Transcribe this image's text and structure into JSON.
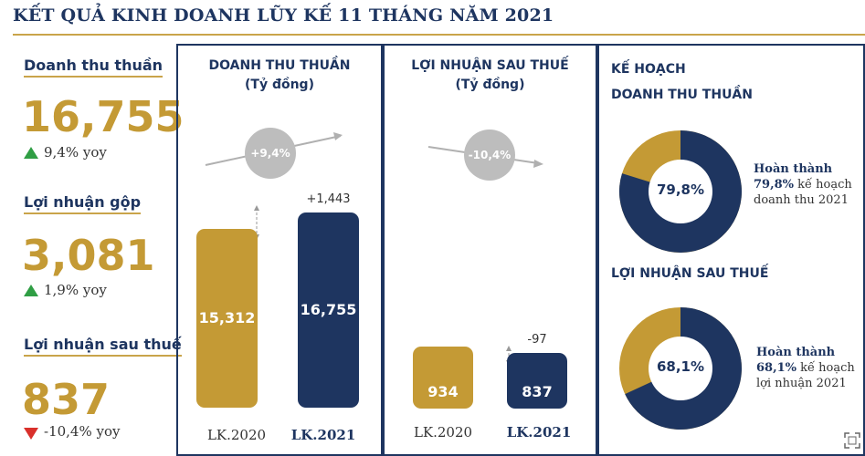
{
  "title": "KẾT QUẢ KINH DOANH LŨY KẾ 11 THÁNG NĂM 2021",
  "kpis": [
    {
      "label": "Doanh thu thuần",
      "value": "16,755",
      "change": "9,4% yoy",
      "direction": "up"
    },
    {
      "label": "Lợi nhuận gộp",
      "value": "3,081",
      "change": "1,9% yoy",
      "direction": "up"
    },
    {
      "label": "Lợi nhuận sau thuế",
      "value": "837",
      "change": "-10,4% yoy",
      "direction": "down"
    }
  ],
  "colors": {
    "navy": "#1e3560",
    "gold": "#c49a35",
    "up": "#2f9e44",
    "down": "#d9302b",
    "bubble": "#bdbdbd"
  },
  "chart_data": [
    {
      "type": "bar",
      "title": "DOANH THU THUẦN",
      "subtitle": "(Tỷ đồng)",
      "categories": [
        "LK.2020",
        "LK.2021"
      ],
      "values": [
        15312,
        16755
      ],
      "value_labels": [
        "15,312",
        "16,755"
      ],
      "change_label": "+1,443",
      "growth_label": "+9,4%",
      "trend": "up"
    },
    {
      "type": "bar",
      "title": "LỢI NHUẬN SAU THUẾ",
      "subtitle": "(Tỷ đồng)",
      "categories": [
        "LK.2020",
        "LK.2021"
      ],
      "values": [
        934,
        837
      ],
      "value_labels": [
        "934",
        "837"
      ],
      "change_label": "-97",
      "growth_label": "-10,4%",
      "trend": "down"
    },
    {
      "type": "pie",
      "heading": "KẾ HOẠCH",
      "title": "DOANH THU THUẦN",
      "completion": 79.8,
      "center_label": "79,8%",
      "desc_bold": "Hoàn thành",
      "desc_pct": "79,8%",
      "desc_line2": "kế hoạch",
      "desc_line3": "doanh thu 2021"
    },
    {
      "type": "pie",
      "title": "LỢI NHUẬN SAU THUẾ",
      "completion": 68.1,
      "center_label": "68,1%",
      "desc_bold": "Hoàn thành",
      "desc_pct": "68,1%",
      "desc_line2": "kế hoạch",
      "desc_line3": "lợi nhuận 2021"
    }
  ]
}
